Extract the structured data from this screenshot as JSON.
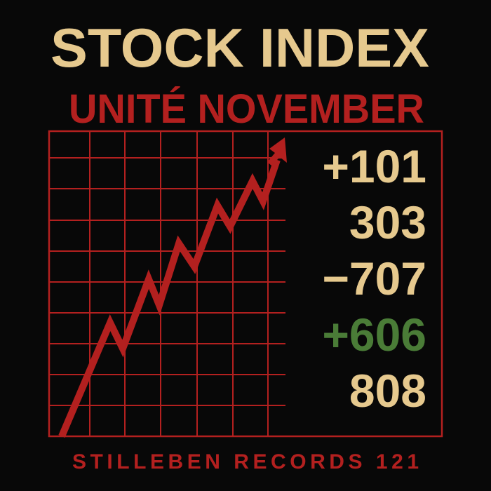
{
  "title": "STOCK INDEX",
  "subtitle": "UNITÉ NOVEMBER",
  "footer": "STILLEBEN RECORDS 121",
  "figures": [
    {
      "text": "+101",
      "color": "#e6c98e"
    },
    {
      "text": "303",
      "color": "#e6c98e"
    },
    {
      "text": "−707",
      "color": "#e6c98e"
    },
    {
      "text": "+606",
      "color": "#4a7c37"
    },
    {
      "text": "808",
      "color": "#e6c98e"
    }
  ],
  "colors": {
    "background": "#080808",
    "title": "#e6c98e",
    "accent_red": "#b3201f",
    "positive_green": "#4a7c37"
  },
  "graphic": {
    "type": "rising zigzag arrow on grid",
    "trend": "up"
  }
}
